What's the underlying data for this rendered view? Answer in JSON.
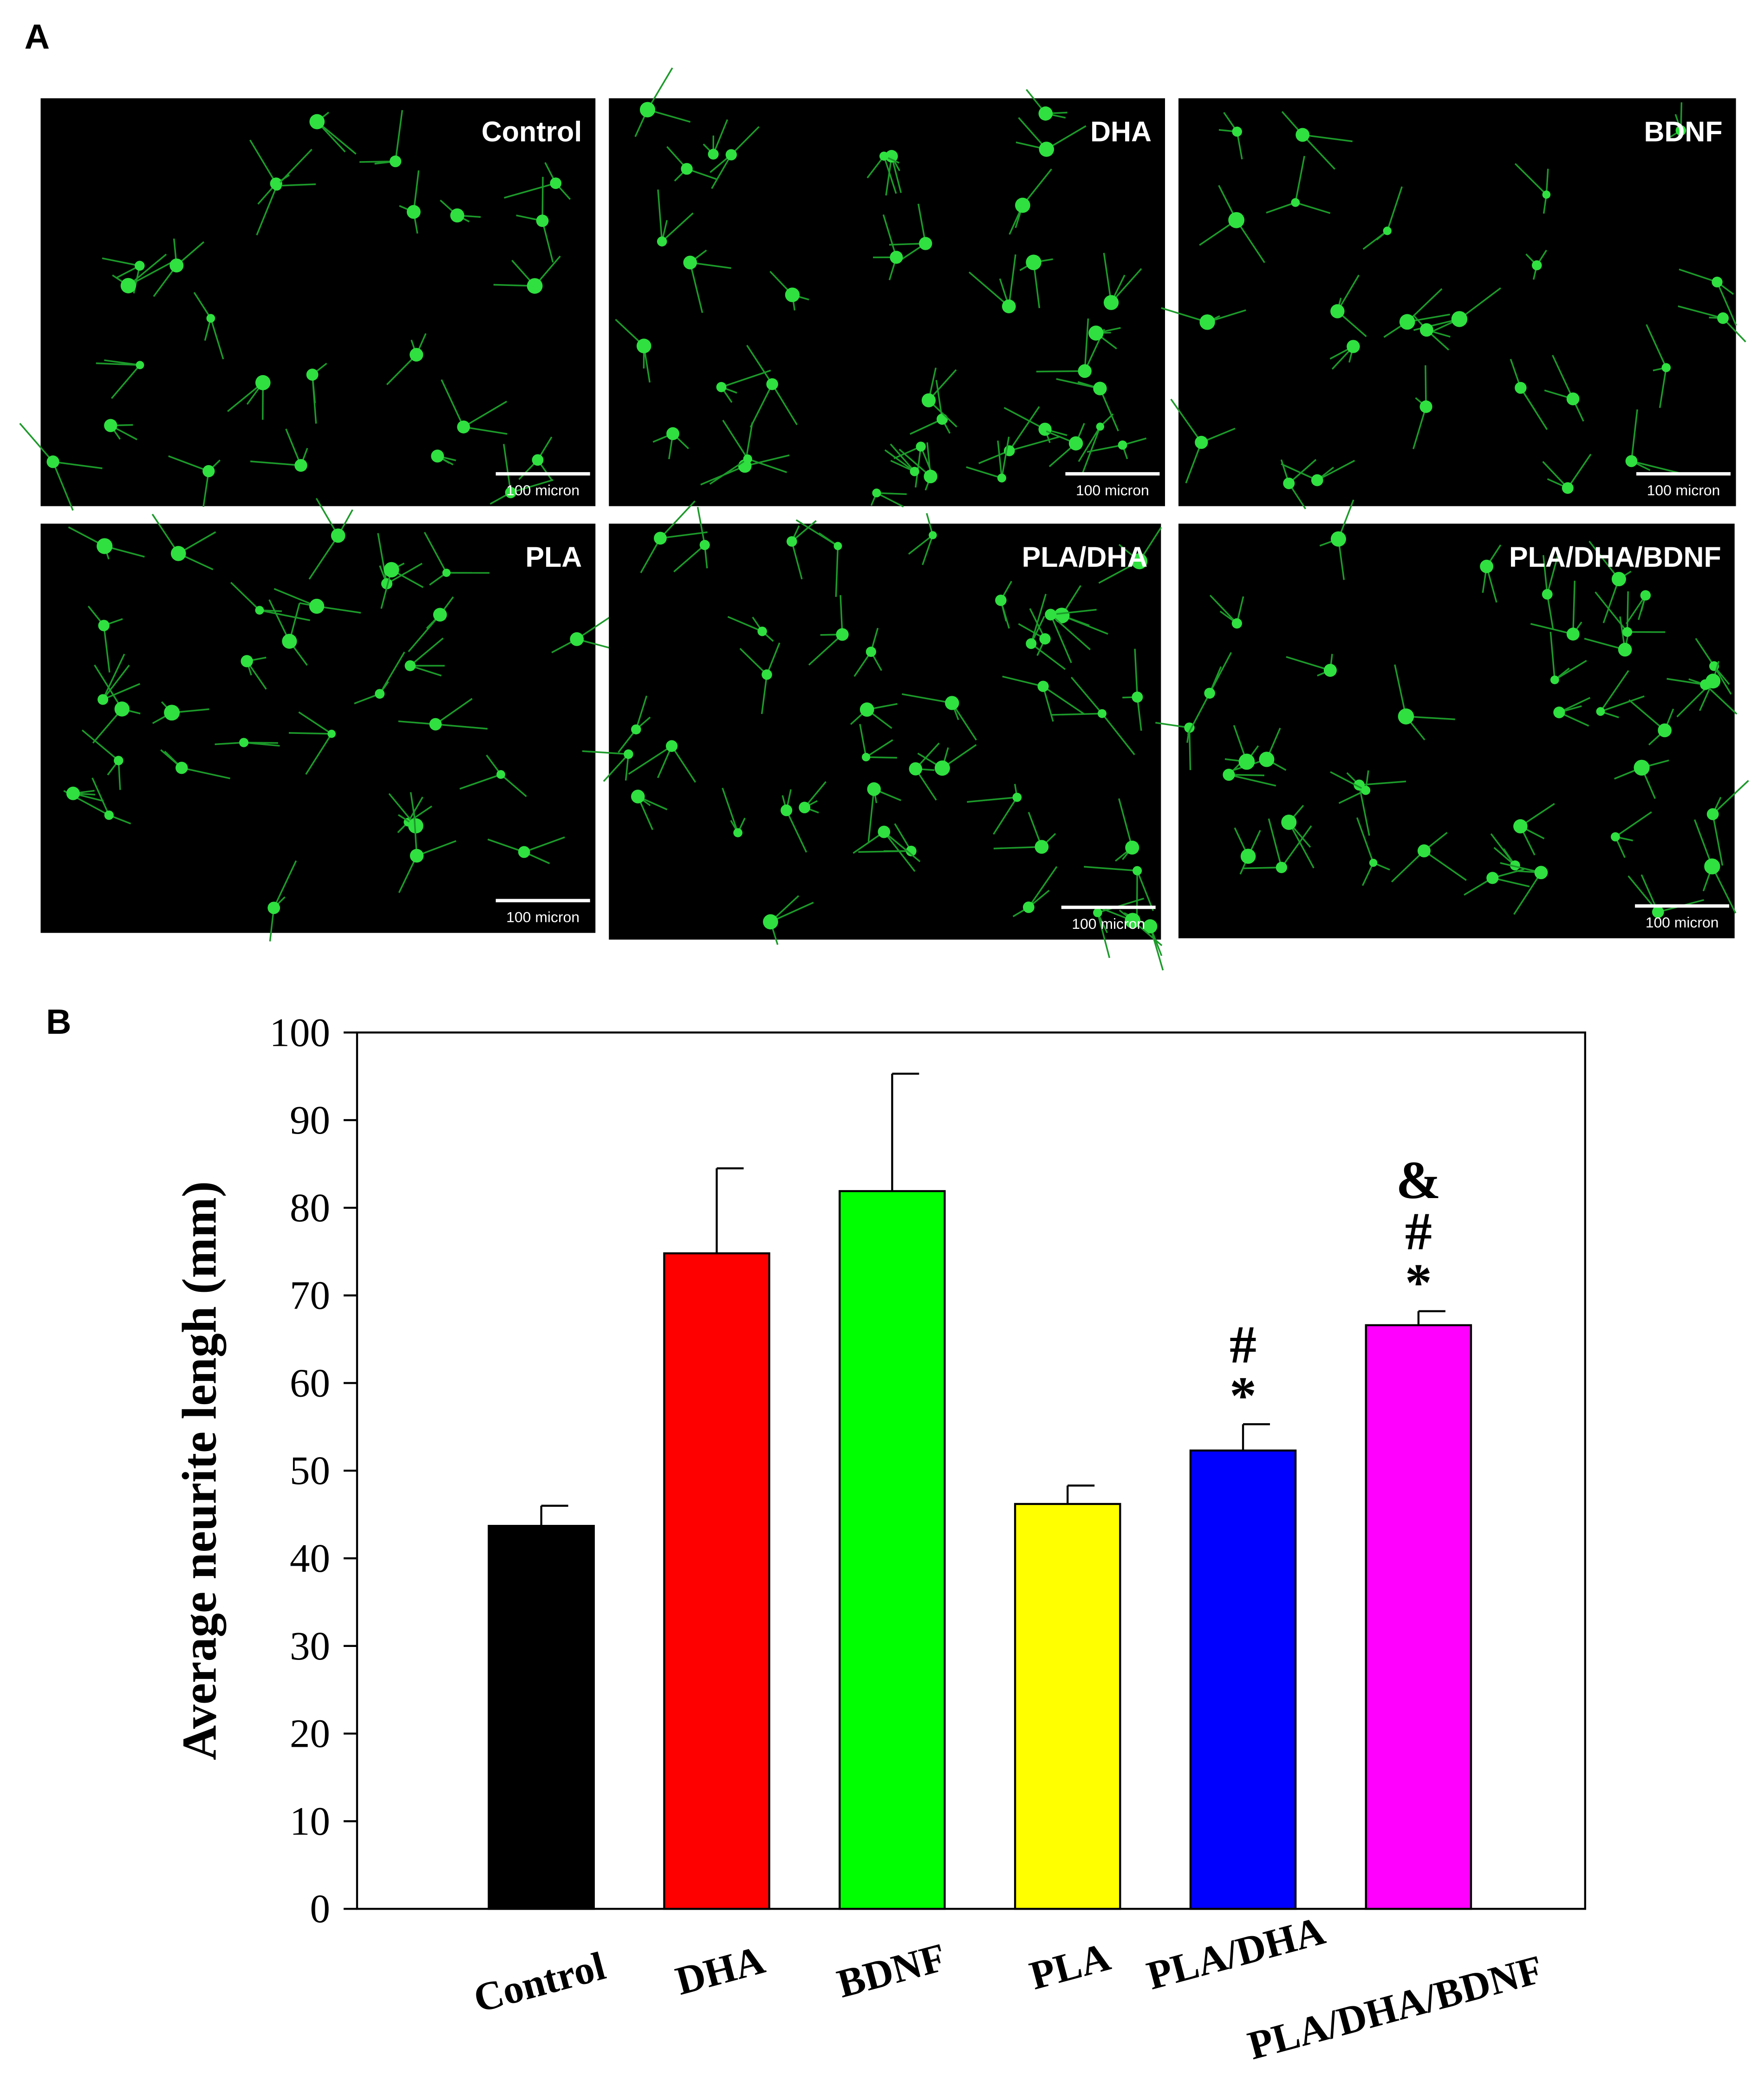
{
  "panel_a": {
    "label": "A",
    "images": [
      {
        "label": "Control",
        "scale_bar": "100 micron"
      },
      {
        "label": "DHA",
        "scale_bar": "100 micron"
      },
      {
        "label": "BDNF",
        "scale_bar": "100 micron"
      },
      {
        "label": "PLA",
        "scale_bar": "100 micron"
      },
      {
        "label": "PLA/DHA",
        "scale_bar": "100 micron"
      },
      {
        "label": "PLA/DHA/BDNF",
        "scale_bar": "100 micron"
      }
    ]
  },
  "chart_data": {
    "type": "bar",
    "panel_label": "B",
    "ylabel": "Average neurite lengh (mm)",
    "categories": [
      "Control",
      "DHA",
      "BDNF",
      "PLA",
      "PLA/DHA",
      "PLA/DHA/BDNF"
    ],
    "values": [
      43.7,
      74.8,
      81.9,
      46.2,
      52.3,
      66.6
    ],
    "errors": [
      2.3,
      9.7,
      13.4,
      2.1,
      3.0,
      1.6
    ],
    "colors": [
      "#000000",
      "#ff0000",
      "#00ff00",
      "#ffff00",
      "#0000ff",
      "#ff00ff"
    ],
    "ylim": [
      0,
      100
    ],
    "yticks": [
      0,
      10,
      20,
      30,
      40,
      50,
      60,
      70,
      80,
      90,
      100
    ],
    "annotations": [
      [
        "#",
        "*"
      ],
      [
        "&",
        "#",
        "*"
      ]
    ]
  }
}
